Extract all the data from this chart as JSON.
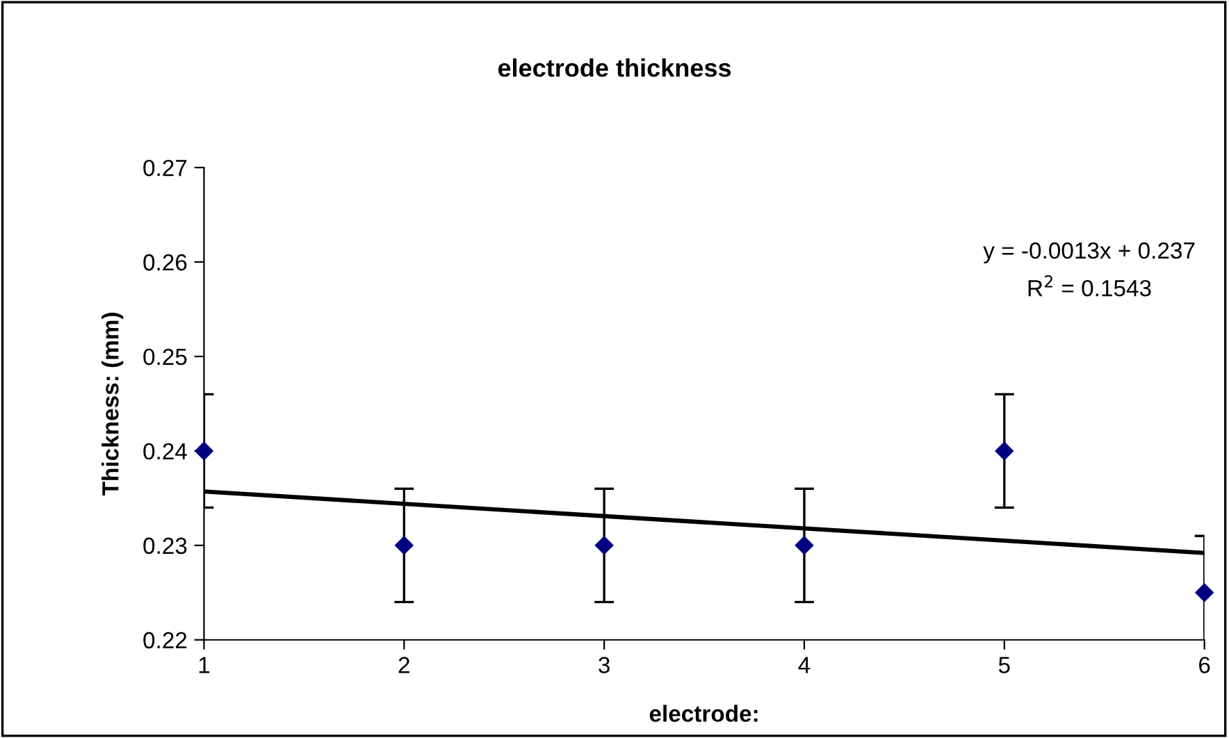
{
  "chart_data": {
    "type": "scatter",
    "title": "electrode thickness",
    "xlabel": "electrode:",
    "ylabel": "Thickness: (mm)",
    "xlim": [
      1,
      6
    ],
    "xticks": [
      1,
      2,
      3,
      4,
      5,
      6
    ],
    "ylim": [
      0.22,
      0.27
    ],
    "yticks": [
      0.22,
      0.23,
      0.24,
      0.25,
      0.26,
      0.27
    ],
    "grid": false,
    "legend": false,
    "series": [
      {
        "marker": "diamond",
        "color": "#000080",
        "x": [
          1,
          2,
          3,
          4,
          5,
          6
        ],
        "values": [
          0.24,
          0.23,
          0.23,
          0.23,
          0.24,
          0.225
        ],
        "errors": [
          0.006,
          0.006,
          0.006,
          0.006,
          0.006,
          0.006
        ]
      },
      {
        "type": "line",
        "color": "#000000",
        "line_style": "solid",
        "x": [
          1,
          6
        ],
        "values": [
          0.2357,
          0.2292
        ]
      }
    ],
    "annotations": [
      "y = -0.0013x + 0.237",
      "R$^{2}$ = 0.1543"
    ]
  }
}
